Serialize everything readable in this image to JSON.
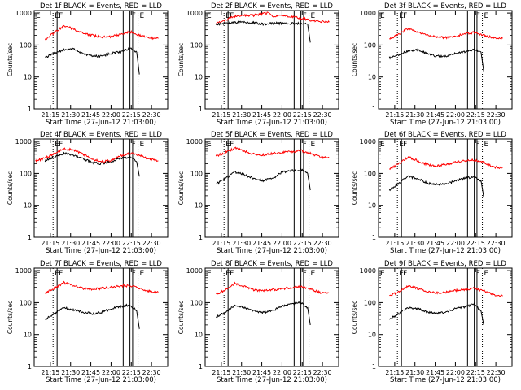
{
  "chart_data": [
    {
      "type": "line",
      "title": "Det 1f BLACK = Events, RED = LLD",
      "xlabel": "Start Time (27-Jun-12 21:03:00)",
      "ylabel": "Counts/sec",
      "yscale": "log",
      "ylim": [
        1,
        1200
      ],
      "yticks": [
        "1",
        "10",
        "100",
        "1000"
      ],
      "xticks": [
        "21:15",
        "21:30",
        "21:45",
        "22:00",
        "22:15",
        "22:30"
      ],
      "xlim": [
        "21:03",
        "22:42"
      ],
      "series": [
        {
          "color": "#ff0000",
          "x": [
            "21:11",
            "21:18",
            "21:25",
            "21:32",
            "21:39",
            "21:46",
            "21:53",
            "22:00",
            "22:07",
            "22:14",
            "22:21",
            "22:28",
            "22:35"
          ],
          "y": [
            150,
            240,
            400,
            320,
            230,
            200,
            180,
            180,
            220,
            260,
            200,
            170,
            160
          ]
        },
        {
          "color": "#000000",
          "x": [
            "21:11",
            "21:18",
            "21:25",
            "21:32",
            "21:39",
            "21:46",
            "21:53",
            "22:00",
            "22:07",
            "22:14",
            "22:19",
            "22:21"
          ],
          "y": [
            40,
            55,
            70,
            75,
            55,
            45,
            45,
            55,
            60,
            80,
            60,
            12
          ]
        }
      ],
      "vlines_solid": [
        "21:20",
        "22:09",
        "22:14",
        "22:16"
      ],
      "vlines_dotted": [
        "21:17",
        "22:20"
      ],
      "markers": [
        "E",
        "F",
        "F",
        "E"
      ]
    },
    {
      "type": "line",
      "title": "Det 2f BLACK = Events, RED = LLD",
      "xlabel": "Start Time (27-Jun-12 21:03:00)",
      "ylabel": "Counts/sec",
      "yscale": "log",
      "ylim": [
        1,
        1200
      ],
      "yticks": [
        "1",
        "10",
        "100",
        "1000"
      ],
      "xticks": [
        "21:15",
        "21:30",
        "21:45",
        "22:00",
        "22:15",
        "22:30"
      ],
      "xlim": [
        "21:03",
        "22:42"
      ],
      "series": [
        {
          "color": "#ff0000",
          "x": [
            "21:11",
            "21:18",
            "21:25",
            "21:32",
            "21:39",
            "21:46",
            "21:50",
            "21:53",
            "22:00",
            "22:07",
            "22:14",
            "22:21",
            "22:28",
            "22:35"
          ],
          "y": [
            500,
            600,
            800,
            850,
            850,
            950,
            1050,
            800,
            850,
            750,
            700,
            600,
            550,
            520
          ]
        },
        {
          "color": "#000000",
          "x": [
            "21:11",
            "21:18",
            "21:25",
            "21:32",
            "21:39",
            "21:46",
            "21:53",
            "22:00",
            "22:07",
            "22:14",
            "22:19",
            "22:21"
          ],
          "y": [
            450,
            480,
            500,
            520,
            500,
            450,
            480,
            480,
            470,
            480,
            450,
            120
          ]
        }
      ],
      "vlines_solid": [
        "21:20",
        "22:09",
        "22:14",
        "22:16"
      ],
      "vlines_dotted": [
        "21:17",
        "22:20"
      ],
      "markers": [
        "E",
        "F",
        "F",
        "E"
      ]
    },
    {
      "type": "line",
      "title": "Det 3f BLACK = Events, RED = LLD",
      "xlabel": "Start Time (27-Jun-12 21:03:00)",
      "ylabel": "Counts/sec",
      "yscale": "log",
      "ylim": [
        1,
        1200
      ],
      "yticks": [
        "1",
        "10",
        "100",
        "1000"
      ],
      "xticks": [
        "21:15",
        "21:30",
        "21:45",
        "22:00",
        "22:15",
        "22:30"
      ],
      "xlim": [
        "21:03",
        "22:42"
      ],
      "series": [
        {
          "color": "#ff0000",
          "x": [
            "21:11",
            "21:18",
            "21:25",
            "21:32",
            "21:39",
            "21:46",
            "21:53",
            "22:00",
            "22:07",
            "22:14",
            "22:21",
            "22:28",
            "22:35"
          ],
          "y": [
            150,
            220,
            330,
            260,
            200,
            180,
            170,
            190,
            220,
            250,
            200,
            170,
            160
          ]
        },
        {
          "color": "#000000",
          "x": [
            "21:11",
            "21:18",
            "21:25",
            "21:32",
            "21:39",
            "21:46",
            "21:53",
            "22:00",
            "22:07",
            "22:14",
            "22:19",
            "22:21"
          ],
          "y": [
            40,
            50,
            65,
            70,
            55,
            45,
            45,
            55,
            60,
            75,
            60,
            15
          ]
        }
      ],
      "vlines_solid": [
        "21:20",
        "22:09",
        "22:14",
        "22:16"
      ],
      "vlines_dotted": [
        "21:17",
        "22:20"
      ],
      "markers": [
        "E",
        "F",
        "F",
        "E"
      ]
    },
    {
      "type": "line",
      "title": "Det 4f BLACK = Events, RED = LLD",
      "xlabel": "Start Time (27-Jun-12 21:03:00)",
      "ylabel": "Counts/sec",
      "yscale": "log",
      "ylim": [
        1,
        1200
      ],
      "yticks": [
        "1",
        "10",
        "100",
        "1000"
      ],
      "xticks": [
        "21:15",
        "21:30",
        "21:45",
        "22:00",
        "22:15",
        "22:30"
      ],
      "xlim": [
        "21:03",
        "22:42"
      ],
      "series": [
        {
          "color": "#ff0000",
          "x": [
            "21:04",
            "21:11",
            "21:18",
            "21:25",
            "21:32",
            "21:39",
            "21:46",
            "21:53",
            "22:00",
            "22:07",
            "22:14",
            "22:21",
            "22:28",
            "22:35"
          ],
          "y": [
            250,
            300,
            420,
            600,
            550,
            400,
            280,
            230,
            260,
            350,
            430,
            380,
            280,
            250
          ]
        },
        {
          "color": "#000000",
          "x": [
            "21:11",
            "21:18",
            "21:25",
            "21:32",
            "21:39",
            "21:46",
            "21:53",
            "22:00",
            "22:07",
            "22:14",
            "22:19",
            "22:21"
          ],
          "y": [
            250,
            330,
            420,
            380,
            290,
            220,
            200,
            230,
            300,
            320,
            230,
            80
          ]
        }
      ],
      "vlines_solid": [
        "21:20",
        "22:09",
        "22:14",
        "22:16"
      ],
      "vlines_dotted": [
        "21:17",
        "22:20"
      ],
      "markers": [
        "E",
        "F",
        "F",
        "E"
      ]
    },
    {
      "type": "line",
      "title": "Det 5f BLACK = Events, RED = LLD",
      "xlabel": "Start Time (27-Jun-12 21:03:00)",
      "ylabel": "Counts/sec",
      "yscale": "log",
      "ylim": [
        1,
        1200
      ],
      "yticks": [
        "1",
        "10",
        "100",
        "1000"
      ],
      "xticks": [
        "21:15",
        "21:30",
        "21:45",
        "22:00",
        "22:15",
        "22:30"
      ],
      "xlim": [
        "21:03",
        "22:42"
      ],
      "series": [
        {
          "color": "#ff0000",
          "x": [
            "21:11",
            "21:18",
            "21:25",
            "21:32",
            "21:39",
            "21:46",
            "21:53",
            "22:00",
            "22:07",
            "22:14",
            "22:21",
            "22:28",
            "22:35"
          ],
          "y": [
            350,
            450,
            620,
            500,
            400,
            380,
            420,
            450,
            480,
            520,
            420,
            330,
            300
          ]
        },
        {
          "color": "#000000",
          "x": [
            "21:11",
            "21:18",
            "21:25",
            "21:32",
            "21:39",
            "21:46",
            "21:53",
            "22:00",
            "22:07",
            "22:14",
            "22:19",
            "22:21"
          ],
          "y": [
            45,
            70,
            110,
            90,
            70,
            60,
            70,
            110,
            120,
            130,
            100,
            30
          ]
        }
      ],
      "vlines_solid": [
        "21:20",
        "22:09",
        "22:14",
        "22:16"
      ],
      "vlines_dotted": [
        "21:17",
        "22:20"
      ],
      "markers": [
        "E",
        "F",
        "F",
        "E"
      ]
    },
    {
      "type": "line",
      "title": "Det 6f BLACK = Events, RED = LLD",
      "xlabel": "Start Time (27-Jun-12 21:03:00)",
      "ylabel": "Counts/sec",
      "yscale": "log",
      "ylim": [
        1,
        1200
      ],
      "yticks": [
        "1",
        "10",
        "100",
        "1000"
      ],
      "xticks": [
        "21:15",
        "21:30",
        "21:45",
        "22:00",
        "22:15",
        "22:30"
      ],
      "xlim": [
        "21:03",
        "22:42"
      ],
      "series": [
        {
          "color": "#ff0000",
          "x": [
            "21:11",
            "21:18",
            "21:25",
            "21:32",
            "21:39",
            "21:46",
            "21:53",
            "22:00",
            "22:07",
            "22:14",
            "22:21",
            "22:28",
            "22:35"
          ],
          "y": [
            130,
            200,
            330,
            250,
            190,
            170,
            190,
            220,
            250,
            260,
            220,
            160,
            150
          ]
        },
        {
          "color": "#000000",
          "x": [
            "21:11",
            "21:18",
            "21:25",
            "21:32",
            "21:39",
            "21:46",
            "21:53",
            "22:00",
            "22:07",
            "22:14",
            "22:19",
            "22:21"
          ],
          "y": [
            30,
            50,
            80,
            70,
            50,
            45,
            45,
            60,
            70,
            80,
            60,
            18
          ]
        }
      ],
      "vlines_solid": [
        "21:20",
        "22:09",
        "22:14",
        "22:16"
      ],
      "vlines_dotted": [
        "21:17",
        "22:20"
      ],
      "markers": [
        "E",
        "F",
        "F",
        "E"
      ]
    },
    {
      "type": "line",
      "title": "Det 7f BLACK = Events, RED = LLD",
      "xlabel": "Start Time (27-Jun-12 21:03:00)",
      "ylabel": "Counts/sec",
      "yscale": "log",
      "ylim": [
        1,
        1200
      ],
      "yticks": [
        "1",
        "10",
        "100",
        "1000"
      ],
      "xticks": [
        "21:15",
        "21:30",
        "21:45",
        "22:00",
        "22:15",
        "22:30"
      ],
      "xlim": [
        "21:03",
        "22:42"
      ],
      "series": [
        {
          "color": "#ff0000",
          "x": [
            "21:11",
            "21:18",
            "21:25",
            "21:32",
            "21:39",
            "21:46",
            "21:53",
            "22:00",
            "22:07",
            "22:14",
            "22:21",
            "22:28",
            "22:35"
          ],
          "y": [
            200,
            280,
            420,
            350,
            280,
            260,
            280,
            300,
            330,
            340,
            280,
            230,
            210
          ]
        },
        {
          "color": "#000000",
          "x": [
            "21:11",
            "21:18",
            "21:25",
            "21:32",
            "21:39",
            "21:46",
            "21:53",
            "22:00",
            "22:07",
            "22:14",
            "22:19",
            "22:21"
          ],
          "y": [
            30,
            45,
            70,
            60,
            50,
            45,
            50,
            65,
            75,
            85,
            55,
            15
          ]
        }
      ],
      "vlines_solid": [
        "21:20",
        "22:09",
        "22:14",
        "22:16"
      ],
      "vlines_dotted": [
        "21:17",
        "22:20"
      ],
      "markers": [
        "E",
        "F",
        "F",
        "E"
      ]
    },
    {
      "type": "line",
      "title": "Det 8f BLACK = Events, RED = LLD",
      "xlabel": "Start Time (27-Jun-12 21:03:00)",
      "ylabel": "Counts/sec",
      "yscale": "log",
      "ylim": [
        1,
        1200
      ],
      "yticks": [
        "1",
        "10",
        "100",
        "1000"
      ],
      "xticks": [
        "21:15",
        "21:30",
        "21:45",
        "22:00",
        "22:15",
        "22:30"
      ],
      "xlim": [
        "21:03",
        "22:42"
      ],
      "series": [
        {
          "color": "#ff0000",
          "x": [
            "21:11",
            "21:18",
            "21:25",
            "21:32",
            "21:39",
            "21:46",
            "21:53",
            "22:00",
            "22:07",
            "22:14",
            "22:21",
            "22:28",
            "22:35"
          ],
          "y": [
            180,
            250,
            400,
            320,
            250,
            230,
            250,
            270,
            300,
            320,
            260,
            210,
            200
          ]
        },
        {
          "color": "#000000",
          "x": [
            "21:11",
            "21:18",
            "21:25",
            "21:32",
            "21:39",
            "21:46",
            "21:53",
            "22:00",
            "22:07",
            "22:14",
            "22:19",
            "22:21"
          ],
          "y": [
            35,
            50,
            80,
            70,
            55,
            50,
            55,
            80,
            90,
            100,
            70,
            20
          ]
        }
      ],
      "vlines_solid": [
        "21:20",
        "22:09",
        "22:14",
        "22:16"
      ],
      "vlines_dotted": [
        "21:17",
        "22:20"
      ],
      "markers": [
        "E",
        "F",
        "F",
        "E"
      ]
    },
    {
      "type": "line",
      "title": "Det 9f BLACK = Events, RED = LLD",
      "xlabel": "Start Time (27-Jun-12 21:03:00)",
      "ylabel": "Counts/sec",
      "yscale": "log",
      "ylim": [
        1,
        1200
      ],
      "yticks": [
        "1",
        "10",
        "100",
        "1000"
      ],
      "xticks": [
        "21:15",
        "21:30",
        "21:45",
        "22:00",
        "22:15",
        "22:30"
      ],
      "xlim": [
        "21:03",
        "22:42"
      ],
      "series": [
        {
          "color": "#ff0000",
          "x": [
            "21:11",
            "21:18",
            "21:25",
            "21:32",
            "21:39",
            "21:46",
            "21:53",
            "22:00",
            "22:07",
            "22:14",
            "22:21",
            "22:28",
            "22:35"
          ],
          "y": [
            160,
            220,
            330,
            280,
            220,
            200,
            210,
            240,
            260,
            280,
            230,
            180,
            160
          ]
        },
        {
          "color": "#000000",
          "x": [
            "21:11",
            "21:18",
            "21:25",
            "21:32",
            "21:39",
            "21:46",
            "21:53",
            "22:00",
            "22:07",
            "22:14",
            "22:19",
            "22:21"
          ],
          "y": [
            30,
            45,
            70,
            65,
            50,
            45,
            50,
            65,
            75,
            90,
            55,
            20
          ]
        }
      ],
      "vlines_solid": [
        "21:20",
        "22:09",
        "22:14",
        "22:16"
      ],
      "vlines_dotted": [
        "21:17",
        "22:20"
      ],
      "markers": [
        "E",
        "F",
        "F",
        "E"
      ]
    }
  ]
}
